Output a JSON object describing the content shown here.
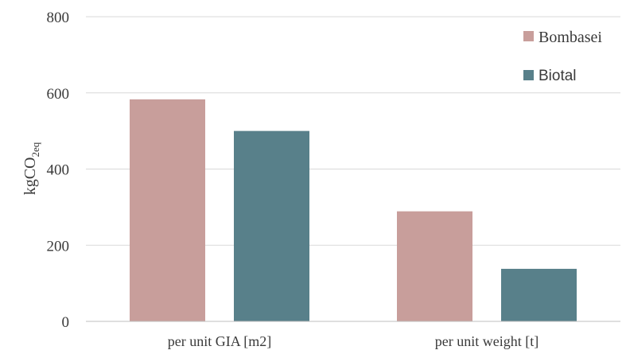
{
  "chart_data": {
    "type": "bar",
    "categories": [
      "per unit GIA [m2]",
      "per unit weight [t]"
    ],
    "series": [
      {
        "name": "Bombasei",
        "values": [
          583,
          289
        ],
        "color": "#c89e9b"
      },
      {
        "name": "Biotal",
        "values": [
          500,
          138
        ],
        "color": "#58808a"
      }
    ],
    "ylabel_main": "kgCO",
    "ylabel_sub": "2eq",
    "ylim": [
      0,
      800
    ],
    "yticks": [
      0,
      200,
      400,
      600,
      800
    ],
    "grid": true,
    "legend_position": "top-right"
  }
}
